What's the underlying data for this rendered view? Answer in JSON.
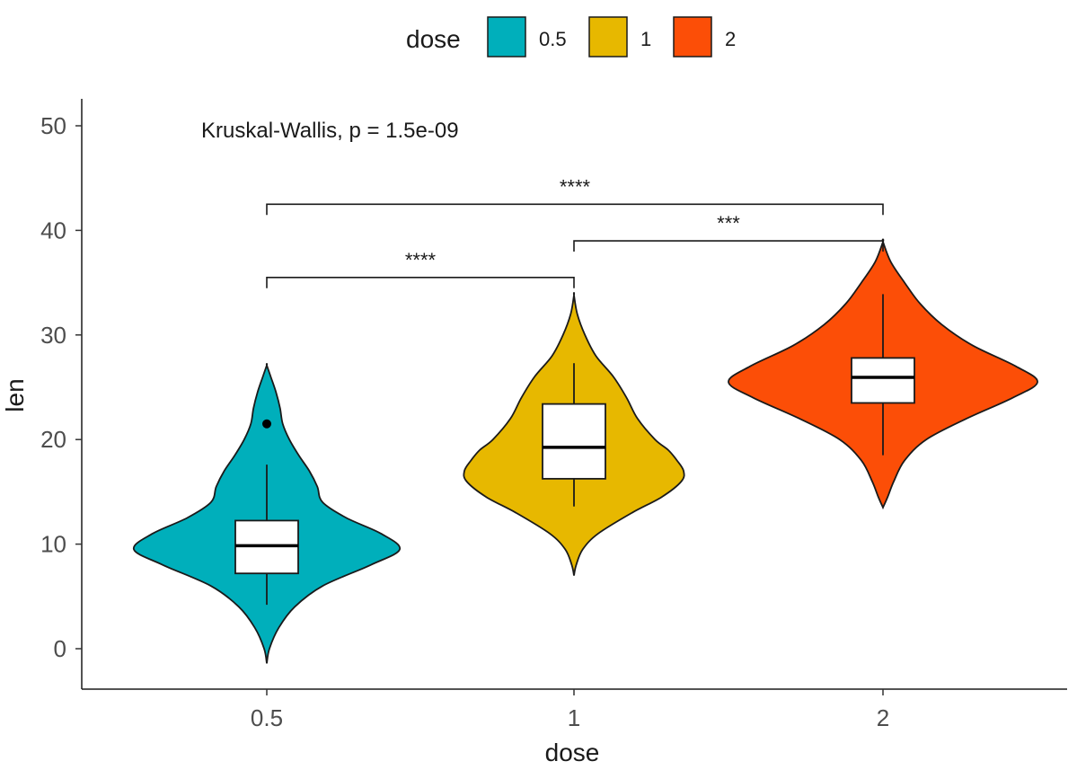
{
  "chart_data": {
    "type": "violin",
    "xlabel": "dose",
    "ylabel": "len",
    "ylim": [
      -4,
      52
    ],
    "yticks": [
      0,
      10,
      20,
      30,
      40,
      50
    ],
    "categories": [
      "0.5",
      "1",
      "2"
    ],
    "colors": [
      "#00AFBB",
      "#E7B800",
      "#FC4E07"
    ],
    "legend": {
      "title": "dose",
      "position": "top",
      "entries": [
        "0.5",
        "1",
        "2"
      ]
    },
    "annotation": "Kruskal-Wallis, p = 1.5e-09",
    "boxes": [
      {
        "category": "0.5",
        "whisker_low": 4.2,
        "q1": 7.2,
        "median": 9.85,
        "q3": 12.25,
        "whisker_high": 17.6,
        "outliers": [
          21.5
        ]
      },
      {
        "category": "1",
        "whisker_low": 13.6,
        "q1": 16.25,
        "median": 19.25,
        "q3": 23.4,
        "whisker_high": 27.3,
        "outliers": []
      },
      {
        "category": "2",
        "whisker_low": 18.5,
        "q1": 23.5,
        "median": 25.95,
        "q3": 27.8,
        "whisker_high": 33.9,
        "outliers": []
      }
    ],
    "violins": [
      {
        "category": "0.5",
        "y_range": [
          -1.4,
          27.1
        ],
        "profile": [
          [
            -1.4,
            0
          ],
          [
            0,
            0.02
          ],
          [
            2,
            0.09
          ],
          [
            4,
            0.21
          ],
          [
            6,
            0.42
          ],
          [
            8,
            0.78
          ],
          [
            9.5,
            1.0
          ],
          [
            11,
            0.86
          ],
          [
            12.5,
            0.6
          ],
          [
            14,
            0.42
          ],
          [
            15.5,
            0.38
          ],
          [
            17,
            0.32
          ],
          [
            18.5,
            0.24
          ],
          [
            20,
            0.17
          ],
          [
            21.5,
            0.12
          ],
          [
            23,
            0.1
          ],
          [
            24.5,
            0.07
          ],
          [
            26,
            0.03
          ],
          [
            27.1,
            0
          ]
        ]
      },
      {
        "category": "1",
        "y_range": [
          7,
          33.8
        ],
        "profile": [
          [
            7,
            0
          ],
          [
            8,
            0.02
          ],
          [
            9.5,
            0.08
          ],
          [
            11,
            0.22
          ],
          [
            13,
            0.53
          ],
          [
            14.5,
            0.8
          ],
          [
            16,
            0.98
          ],
          [
            17,
            1.0
          ],
          [
            18,
            0.94
          ],
          [
            19,
            0.86
          ],
          [
            20,
            0.74
          ],
          [
            22,
            0.58
          ],
          [
            24,
            0.48
          ],
          [
            26,
            0.36
          ],
          [
            28,
            0.2
          ],
          [
            30,
            0.1
          ],
          [
            32,
            0.03
          ],
          [
            33.8,
            0
          ]
        ]
      },
      {
        "category": "2",
        "y_range": [
          13.5,
          38.9
        ],
        "profile": [
          [
            13.5,
            0
          ],
          [
            14.5,
            0.03
          ],
          [
            16,
            0.07
          ],
          [
            18,
            0.14
          ],
          [
            20,
            0.28
          ],
          [
            22,
            0.54
          ],
          [
            24,
            0.84
          ],
          [
            25.5,
            1.0
          ],
          [
            27,
            0.86
          ],
          [
            29,
            0.58
          ],
          [
            31,
            0.38
          ],
          [
            33,
            0.24
          ],
          [
            35,
            0.14
          ],
          [
            37,
            0.05
          ],
          [
            38.9,
            0
          ]
        ]
      }
    ],
    "comparisons": [
      {
        "from": "0.5",
        "to": "1",
        "y": 35.5,
        "label": "****"
      },
      {
        "from": "0.5",
        "to": "2",
        "y": 42.5,
        "label": "****"
      },
      {
        "from": "1",
        "to": "2",
        "y": 39.0,
        "label": "***"
      }
    ],
    "grid": false
  }
}
